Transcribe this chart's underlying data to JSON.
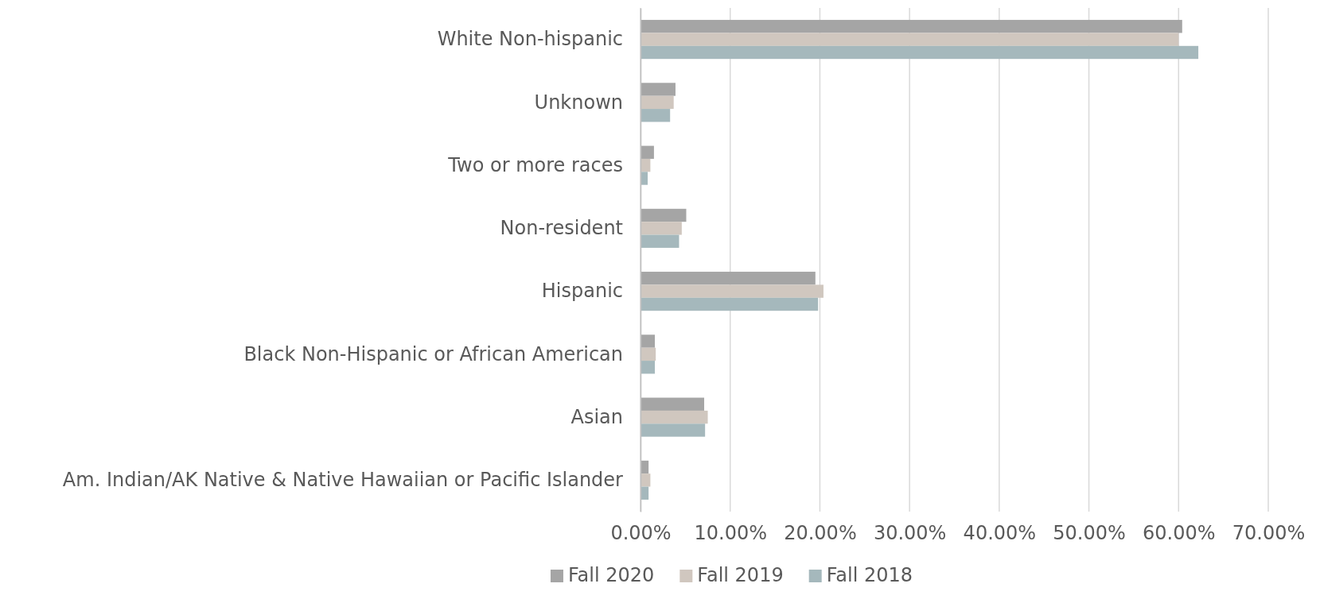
{
  "chart_data": {
    "type": "bar",
    "orientation": "horizontal",
    "categories": [
      "White Non-hispanic",
      "Unknown",
      "Two or more races",
      "Non-resident",
      "Hispanic",
      "Black Non-Hispanic or African American",
      "Asian",
      "Am. Indian/AK Native & Native Hawaiian or Pacific Islander"
    ],
    "series": [
      {
        "name": "Fall 2020",
        "color": "#a5a5a5",
        "values": [
          60.4,
          3.9,
          1.5,
          5.1,
          19.5,
          1.6,
          7.1,
          0.9
        ]
      },
      {
        "name": "Fall 2019",
        "color": "#d0c7bf",
        "values": [
          60.0,
          3.7,
          1.1,
          4.6,
          20.4,
          1.7,
          7.5,
          1.1
        ]
      },
      {
        "name": "Fall 2018",
        "color": "#a5b8bc",
        "values": [
          62.2,
          3.3,
          0.8,
          4.3,
          19.8,
          1.6,
          7.2,
          0.9
        ]
      }
    ],
    "xlim": [
      0,
      70
    ],
    "xticks": [
      {
        "value": 0,
        "label": "0.00%"
      },
      {
        "value": 10,
        "label": "10.00%"
      },
      {
        "value": 20,
        "label": "20.00%"
      },
      {
        "value": 30,
        "label": "30.00%"
      },
      {
        "value": 40,
        "label": "40.00%"
      },
      {
        "value": 50,
        "label": "50.00%"
      },
      {
        "value": 60,
        "label": "60.00%"
      },
      {
        "value": 70,
        "label": "70.00%"
      }
    ],
    "grid": "x",
    "legend": "bottom"
  }
}
